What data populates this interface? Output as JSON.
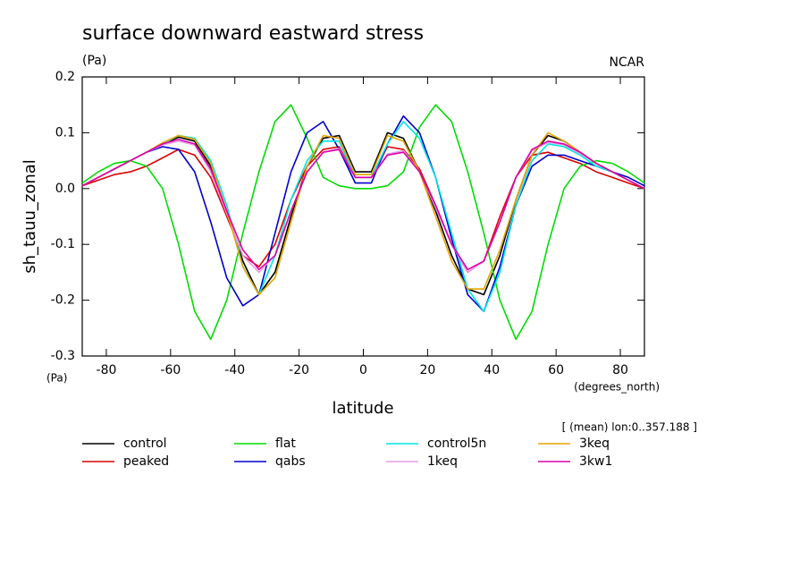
{
  "chart_data": {
    "type": "line",
    "title": "surface downward eastward stress",
    "subtitle": "(Pa)",
    "credit": "NCAR",
    "y_label": "sh_tauu_zonal",
    "y_units": "(Pa)",
    "x_label": "latitude",
    "x_units": "(degrees_north)",
    "annotation": "[ (mean) lon:0..357.188 ]",
    "xlim": [
      -87.5,
      87.5
    ],
    "xticks": [
      -80,
      -60,
      -40,
      -20,
      0,
      20,
      40,
      60,
      80
    ],
    "ylim": [
      -0.3,
      0.2
    ],
    "yticks": [
      -0.3,
      -0.2,
      -0.1,
      {
        "value": 0,
        "label": "0.0"
      },
      0.1,
      0.2
    ],
    "x": [
      -87.5,
      -82.5,
      -77.5,
      -72.5,
      -67.5,
      -62.5,
      -57.5,
      -52.5,
      -47.5,
      -42.5,
      -37.5,
      -32.5,
      -27.5,
      -22.5,
      -17.5,
      -12.5,
      -7.5,
      -2.5,
      2.5,
      7.5,
      12.5,
      17.5,
      22.5,
      27.5,
      32.5,
      37.5,
      42.5,
      47.5,
      52.5,
      57.5,
      62.5,
      67.5,
      72.5,
      77.5,
      82.5,
      87.5
    ],
    "series": [
      {
        "name": "control",
        "color": "#000000",
        "values": [
          0.005,
          0.02,
          0.035,
          0.05,
          0.065,
          0.08,
          0.092,
          0.085,
          0.04,
          -0.04,
          -0.13,
          -0.19,
          -0.15,
          -0.05,
          0.04,
          0.09,
          0.095,
          0.03,
          0.03,
          0.1,
          0.09,
          0.03,
          -0.04,
          -0.12,
          -0.18,
          -0.19,
          -0.12,
          -0.02,
          0.06,
          0.095,
          0.085,
          0.065,
          0.045,
          0.03,
          0.015,
          0.0
        ]
      },
      {
        "name": "peaked",
        "color": "#dd0000",
        "values": [
          0.005,
          0.015,
          0.025,
          0.03,
          0.04,
          0.055,
          0.07,
          0.06,
          0.02,
          -0.05,
          -0.12,
          -0.14,
          -0.1,
          -0.02,
          0.04,
          0.07,
          0.075,
          0.02,
          0.02,
          0.075,
          0.07,
          0.035,
          -0.03,
          -0.1,
          -0.15,
          -0.13,
          -0.05,
          0.02,
          0.06,
          0.065,
          0.055,
          0.045,
          0.03,
          0.02,
          0.01,
          0.0
        ]
      },
      {
        "name": "flat",
        "color": "#00dd00",
        "values": [
          0.01,
          0.03,
          0.045,
          0.05,
          0.04,
          0.0,
          -0.1,
          -0.22,
          -0.27,
          -0.2,
          -0.08,
          0.03,
          0.12,
          0.15,
          0.09,
          0.02,
          0.005,
          0.0,
          0.0,
          0.005,
          0.03,
          0.11,
          0.15,
          0.12,
          0.03,
          -0.08,
          -0.2,
          -0.27,
          -0.22,
          -0.1,
          0.0,
          0.04,
          0.05,
          0.045,
          0.03,
          0.01
        ]
      },
      {
        "name": "qabs",
        "color": "#0000cc",
        "values": [
          0.005,
          0.02,
          0.035,
          0.05,
          0.065,
          0.075,
          0.07,
          0.03,
          -0.06,
          -0.16,
          -0.21,
          -0.19,
          -0.08,
          0.03,
          0.1,
          0.12,
          0.07,
          0.01,
          0.01,
          0.08,
          0.13,
          0.1,
          0.02,
          -0.09,
          -0.19,
          -0.22,
          -0.14,
          -0.03,
          0.04,
          0.06,
          0.06,
          0.05,
          0.04,
          0.03,
          0.02,
          0.005
        ]
      },
      {
        "name": "control5n",
        "color": "#00e5e5",
        "values": [
          0.005,
          0.02,
          0.035,
          0.05,
          0.065,
          0.08,
          0.095,
          0.09,
          0.05,
          -0.03,
          -0.14,
          -0.19,
          -0.12,
          -0.02,
          0.05,
          0.085,
          0.085,
          0.02,
          0.02,
          0.08,
          0.12,
          0.09,
          0.02,
          -0.08,
          -0.18,
          -0.22,
          -0.15,
          -0.03,
          0.05,
          0.08,
          0.075,
          0.06,
          0.04,
          0.03,
          0.015,
          0.0
        ]
      },
      {
        "name": "1keq",
        "color": "#e5a0e5",
        "values": [
          0.005,
          0.02,
          0.035,
          0.05,
          0.065,
          0.078,
          0.085,
          0.078,
          0.03,
          -0.045,
          -0.12,
          -0.15,
          -0.12,
          -0.04,
          0.03,
          0.065,
          0.072,
          0.02,
          0.02,
          0.062,
          0.068,
          0.03,
          -0.035,
          -0.1,
          -0.15,
          -0.13,
          -0.06,
          0.02,
          0.068,
          0.083,
          0.078,
          0.063,
          0.045,
          0.03,
          0.015,
          0.0
        ]
      },
      {
        "name": "3keq",
        "color": "#e5a500",
        "values": [
          0.005,
          0.02,
          0.035,
          0.05,
          0.065,
          0.082,
          0.095,
          0.088,
          0.045,
          -0.04,
          -0.14,
          -0.19,
          -0.16,
          -0.06,
          0.04,
          0.095,
          0.09,
          0.025,
          0.025,
          0.095,
          0.085,
          0.03,
          -0.05,
          -0.13,
          -0.18,
          -0.18,
          -0.11,
          -0.02,
          0.06,
          0.1,
          0.085,
          0.065,
          0.045,
          0.03,
          0.015,
          0.0
        ]
      },
      {
        "name": "3kw1",
        "color": "#dd00aa",
        "values": [
          0.005,
          0.02,
          0.035,
          0.05,
          0.065,
          0.08,
          0.088,
          0.08,
          0.035,
          -0.04,
          -0.11,
          -0.145,
          -0.12,
          -0.04,
          0.03,
          0.065,
          0.07,
          0.02,
          0.02,
          0.06,
          0.065,
          0.03,
          -0.03,
          -0.1,
          -0.145,
          -0.13,
          -0.06,
          0.02,
          0.07,
          0.085,
          0.08,
          0.065,
          0.045,
          0.03,
          0.015,
          0.0
        ]
      }
    ]
  }
}
